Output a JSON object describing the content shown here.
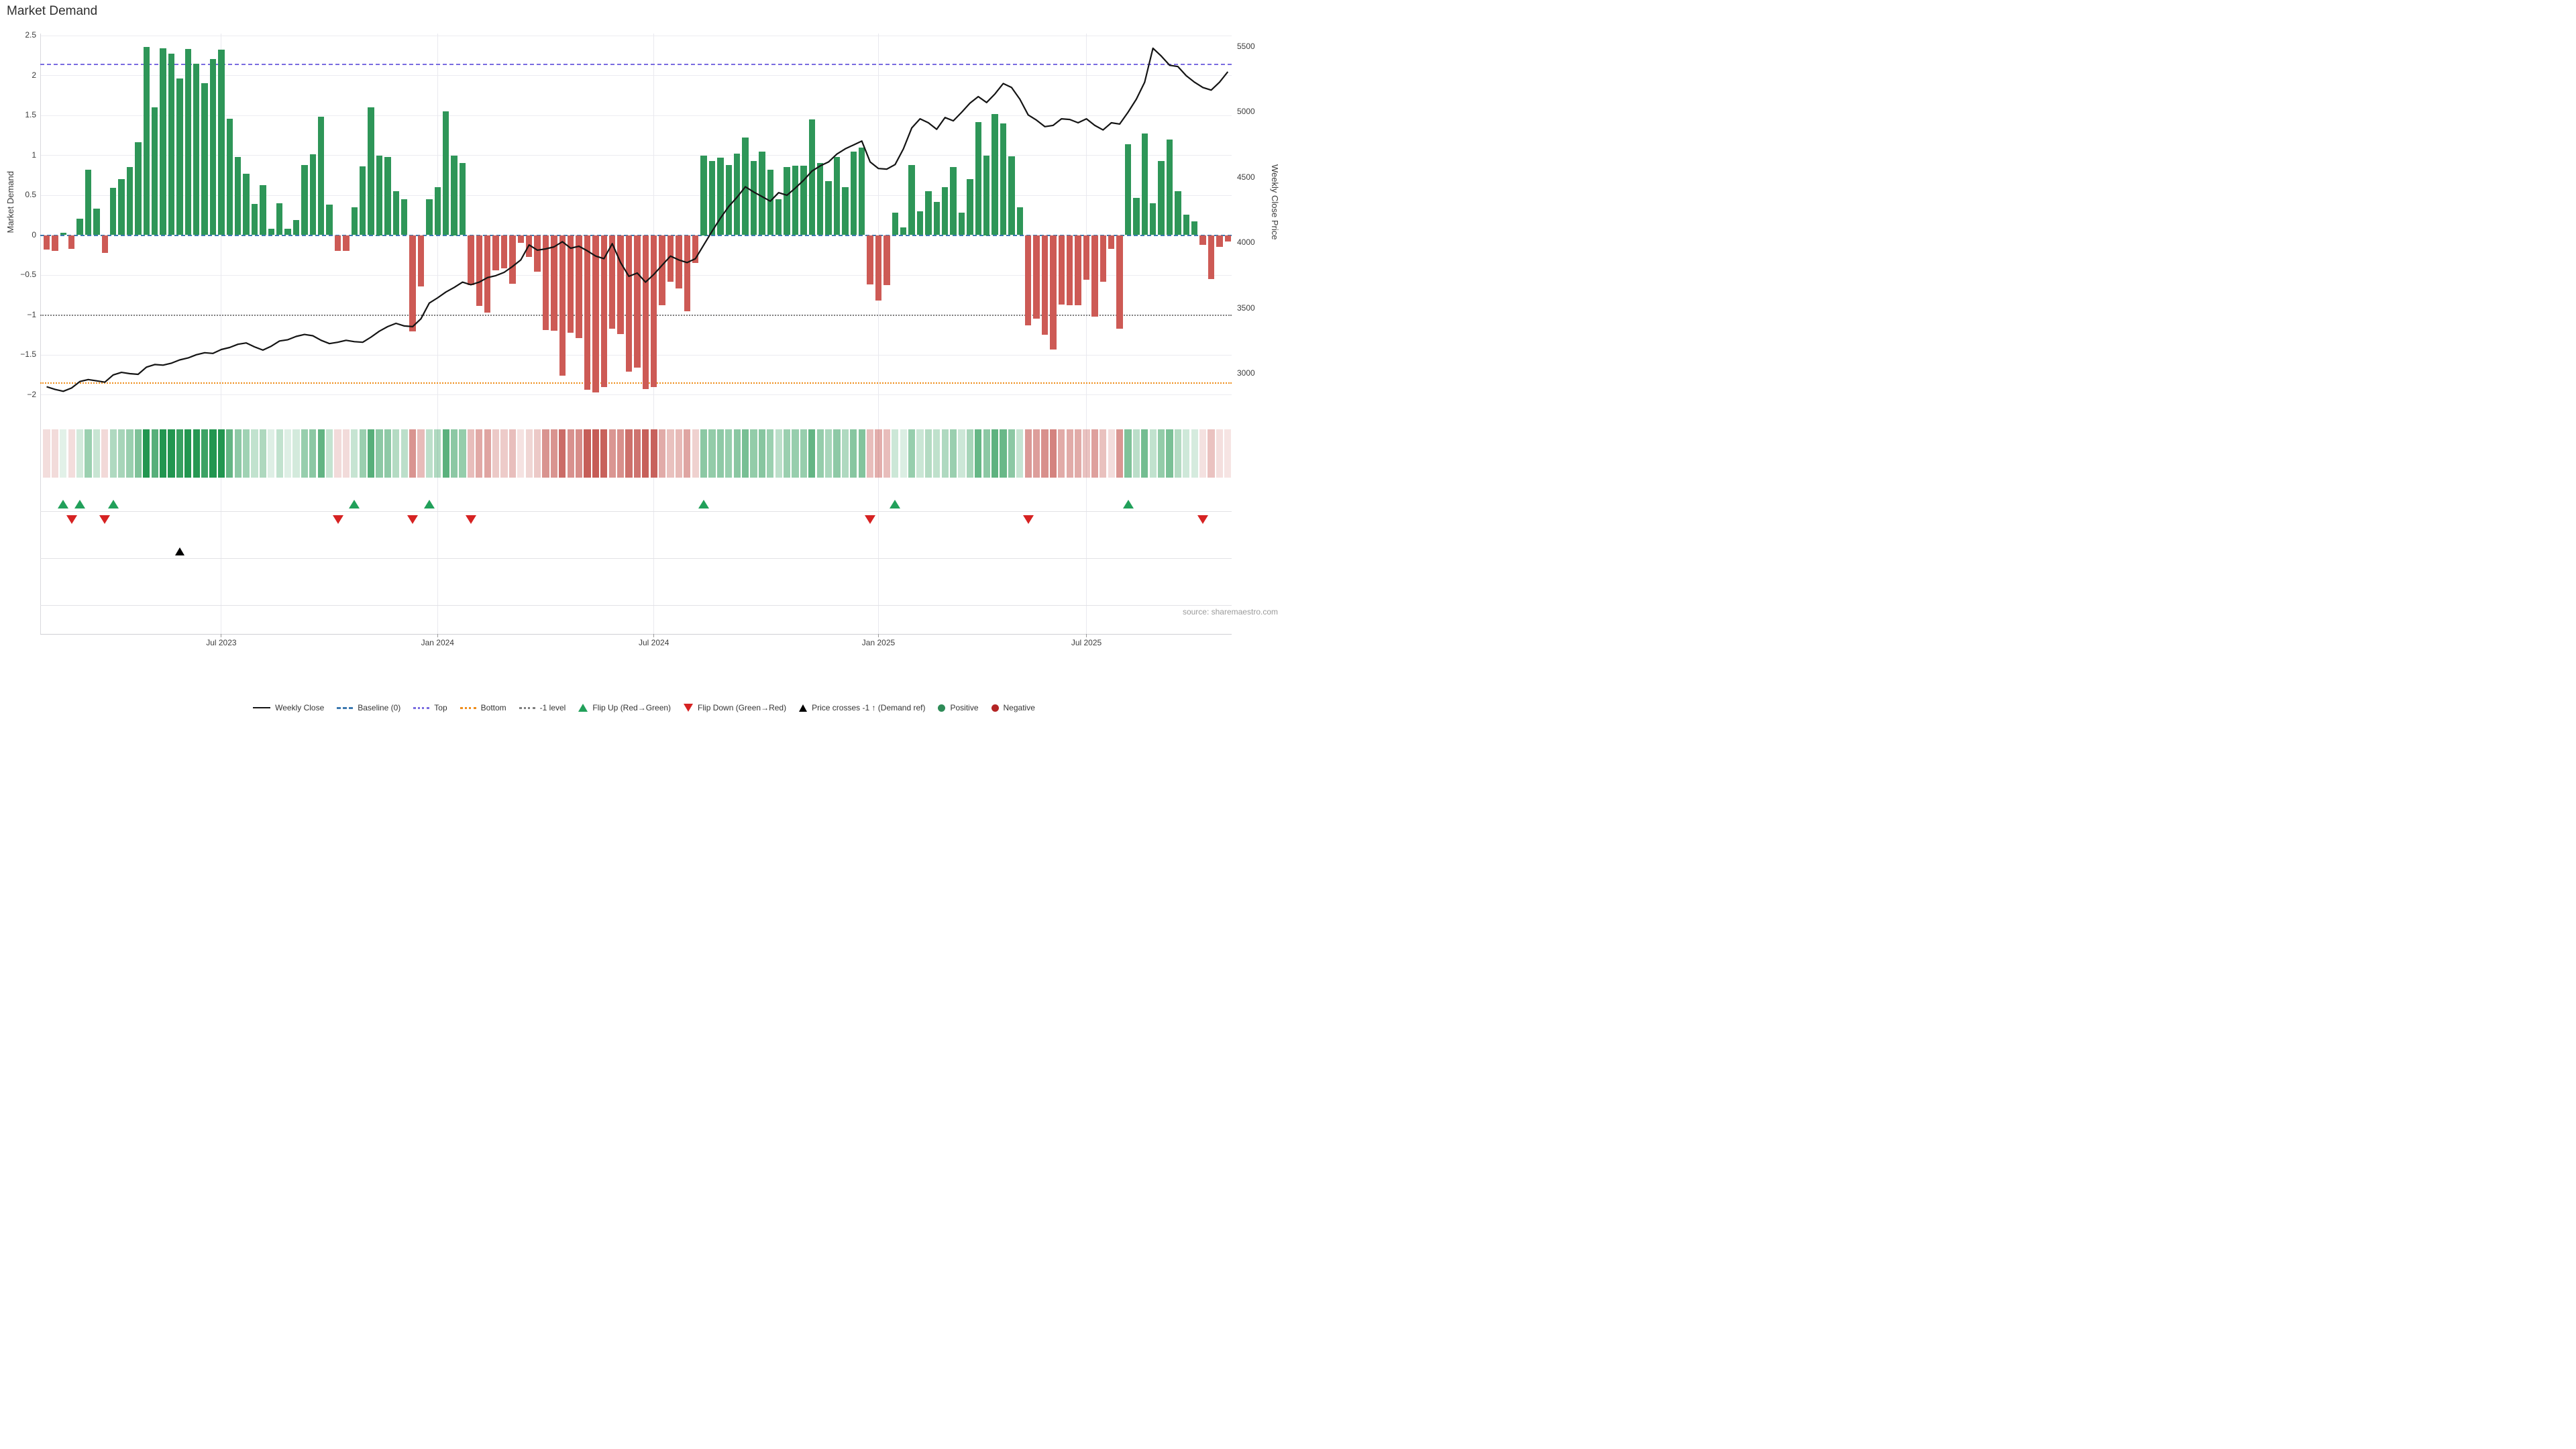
{
  "title": "Market Demand",
  "source": "source: sharemaestro.com",
  "axes": {
    "left_title": "Market Demand",
    "right_title": "Weekly Close Price",
    "left_ticks": [
      "2.5",
      "2",
      "1.5",
      "1",
      "0.5",
      "0",
      "−0.5",
      "−1",
      "−1.5",
      "−2"
    ],
    "left_tick_values": [
      2.5,
      2,
      1.5,
      1,
      0.5,
      0,
      -0.5,
      -1,
      -1.5,
      -2
    ],
    "right_ticks": [
      "5500",
      "5000",
      "4500",
      "4000",
      "3500",
      "3000"
    ],
    "right_tick_values": [
      5500,
      5000,
      4500,
      4000,
      3500,
      3000
    ],
    "x_ticks": [
      "Jul 2023",
      "Jan 2024",
      "Jul 2024",
      "Jan 2025",
      "Jul 2025"
    ],
    "x_tick_weeks": [
      21,
      47,
      73,
      100,
      125
    ]
  },
  "legend": [
    {
      "label": "Weekly Close",
      "swatch": "line",
      "color": "#141414"
    },
    {
      "label": "Baseline (0)",
      "swatch": "dash",
      "color": "#3c79b0"
    },
    {
      "label": "Top",
      "swatch": "dots",
      "color": "#7a6ce0"
    },
    {
      "label": "Bottom",
      "swatch": "dots",
      "color": "#ef8e1b"
    },
    {
      "label": "-1 level",
      "swatch": "dots",
      "color": "#7f7f7f"
    },
    {
      "label": "Flip Up (Red→Green)",
      "swatch": "tri-up",
      "color": "#21a05a"
    },
    {
      "label": "Flip Down (Green→Red)",
      "swatch": "tri-down",
      "color": "#d62222"
    },
    {
      "label": "Price crosses -1 ↑ (Demand ref)",
      "swatch": "tri-black",
      "color": "#000000"
    },
    {
      "label": "Positive",
      "swatch": "circle",
      "color": "#2e8b57"
    },
    {
      "label": "Negative",
      "swatch": "circle",
      "color": "#b42525"
    }
  ],
  "chart_data": {
    "type": "bar+line combo with heatmap strip and event markers",
    "start_week": "2023-02-06",
    "week_count": 143,
    "ylabel": "Market Demand",
    "y2label": "Weekly Close Price",
    "ylim": [
      -2.0,
      2.5
    ],
    "y2lim": [
      3000,
      5500
    ],
    "levels": {
      "baseline": 0,
      "top": 2.14,
      "bottom": -1.85,
      "minus1": -1
    },
    "colors": {
      "positive_bar": "#2e9658",
      "negative_bar": "#cd5a55",
      "price_line": "#141414",
      "baseline": "#3c79b0",
      "top": "#7a6ce0",
      "bottom": "#ef8e1b",
      "minus1": "#7f7f7f",
      "flip_up": "#21a05a",
      "flip_down": "#d62222",
      "price_cross": "#000000"
    },
    "demand": [
      -0.18,
      -0.2,
      0.03,
      -0.17,
      0.21,
      0.82,
      0.33,
      -0.22,
      0.59,
      0.7,
      0.85,
      1.16,
      2.36,
      1.6,
      2.34,
      2.27,
      1.96,
      2.33,
      2.15,
      1.9,
      2.21,
      2.32,
      1.46,
      0.98,
      0.77,
      0.39,
      0.63,
      0.08,
      0.4,
      0.08,
      0.19,
      0.88,
      1.01,
      1.48,
      0.38,
      -0.2,
      -0.2,
      0.35,
      0.86,
      1.6,
      1.0,
      0.98,
      0.55,
      0.45,
      -1.21,
      -0.64,
      0.45,
      0.6,
      1.55,
      1.0,
      0.9,
      -0.63,
      -0.89,
      -0.97,
      -0.44,
      -0.42,
      -0.61,
      -0.1,
      -0.27,
      -0.46,
      -1.19,
      -1.2,
      -1.76,
      -1.22,
      -1.29,
      -1.94,
      -1.97,
      -1.9,
      -1.17,
      -1.24,
      -1.71,
      -1.66,
      -1.93,
      -1.9,
      -0.88,
      -0.58,
      -0.67,
      -0.95,
      -0.35,
      1.0,
      0.93,
      0.97,
      0.88,
      1.02,
      1.22,
      0.93,
      1.05,
      0.82,
      0.45,
      0.85,
      0.87,
      0.87,
      1.45,
      0.9,
      0.68,
      0.98,
      0.6,
      1.05,
      1.1,
      -0.62,
      -0.82,
      -0.63,
      0.28,
      0.1,
      0.88,
      0.3,
      0.55,
      0.42,
      0.6,
      0.85,
      0.28,
      0.7,
      1.42,
      1.0,
      1.52,
      1.4,
      0.99,
      0.35,
      -1.13,
      -1.05,
      -1.25,
      -1.43,
      -0.87,
      -0.88,
      -0.88,
      -0.56,
      -1.02,
      -0.58,
      -0.17,
      -1.17,
      1.14,
      0.47,
      1.27,
      0.4,
      0.93,
      1.2,
      0.55,
      0.26,
      0.17,
      -0.12,
      -0.55,
      -0.15,
      -0.08
    ],
    "weekly_close": [
      2900,
      2880,
      2865,
      2890,
      2940,
      2955,
      2945,
      2935,
      2990,
      3010,
      3000,
      2995,
      3050,
      3070,
      3065,
      3080,
      3105,
      3120,
      3145,
      3160,
      3155,
      3185,
      3200,
      3225,
      3235,
      3205,
      3180,
      3210,
      3250,
      3260,
      3285,
      3300,
      3290,
      3255,
      3230,
      3240,
      3255,
      3245,
      3240,
      3280,
      3325,
      3360,
      3385,
      3365,
      3360,
      3420,
      3540,
      3580,
      3625,
      3660,
      3700,
      3680,
      3700,
      3735,
      3750,
      3775,
      3820,
      3870,
      3985,
      3945,
      3955,
      3970,
      4010,
      3960,
      3975,
      3940,
      3900,
      3880,
      3995,
      3850,
      3745,
      3770,
      3700,
      3760,
      3830,
      3900,
      3870,
      3850,
      3880,
      3985,
      4090,
      4190,
      4280,
      4350,
      4430,
      4390,
      4355,
      4320,
      4385,
      4365,
      4420,
      4480,
      4550,
      4590,
      4620,
      4680,
      4720,
      4750,
      4780,
      4620,
      4570,
      4565,
      4600,
      4720,
      4880,
      4950,
      4920,
      4870,
      4960,
      4935,
      5000,
      5070,
      5120,
      5075,
      5140,
      5220,
      5190,
      5100,
      4980,
      4940,
      4890,
      4900,
      4950,
      4945,
      4920,
      4950,
      4900,
      4865,
      4920,
      4910,
      5000,
      5100,
      5230,
      5490,
      5430,
      5360,
      5350,
      5280,
      5230,
      5190,
      5170,
      5230,
      5310
    ],
    "markers": {
      "flip_up_weeks": [
        2,
        4,
        8,
        37,
        46,
        79,
        102,
        130
      ],
      "flip_down_weeks": [
        3,
        7,
        35,
        44,
        51,
        99,
        118,
        139
      ],
      "price_cross_minus1_week": 16
    },
    "heatmap": "per-week strip, green for positive demand, red for negative, opacity scaled to |value|",
    "grid": true,
    "legend_position": "bottom center"
  }
}
